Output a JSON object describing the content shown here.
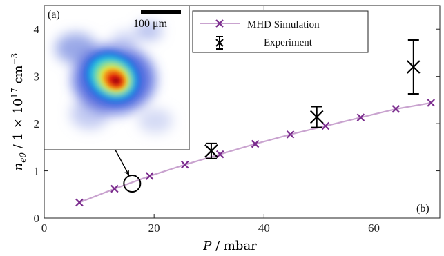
{
  "chart_data": {
    "type": "line",
    "xlabel_var": "P",
    "xlabel_unit": " / mbar",
    "ylabel_var": "n",
    "ylabel_sub": "e0",
    "ylabel_unit_prefix": " / 1 × 10",
    "ylabel_exp": "17",
    "ylabel_unit_suffix": " cm",
    "ylabel_unit_exp": "−3",
    "xlim": [
      0,
      72
    ],
    "ylim": [
      0,
      4.5
    ],
    "xticks": [
      0,
      20,
      40,
      60
    ],
    "yticks": [
      0,
      1,
      2,
      3,
      4
    ],
    "grid": false,
    "legend_position": "top-right",
    "series": [
      {
        "name": "MHD Simulation",
        "kind": "line-with-x-markers",
        "color": "#7b2d8e",
        "line_color": "#c9a3cf",
        "x": [
          6.4,
          12.8,
          19.2,
          25.6,
          32.0,
          38.4,
          44.8,
          51.2,
          57.6,
          64.0,
          70.4
        ],
        "y": [
          0.33,
          0.62,
          0.89,
          1.13,
          1.35,
          1.57,
          1.77,
          1.95,
          2.13,
          2.31,
          2.44
        ]
      },
      {
        "name": "Experiment",
        "kind": "x-markers-with-error-bars",
        "color": "#000000",
        "x": [
          30.4,
          49.6,
          67.2
        ],
        "y": [
          1.42,
          2.14,
          3.2
        ],
        "yerr": [
          0.16,
          0.22,
          0.57
        ]
      }
    ],
    "highlight_circle": {
      "x": 16.0,
      "y": 0.73
    },
    "panel_label": "(b)"
  },
  "inset": {
    "panel_label": "(a)",
    "scale_bar_label": "100 μm"
  }
}
